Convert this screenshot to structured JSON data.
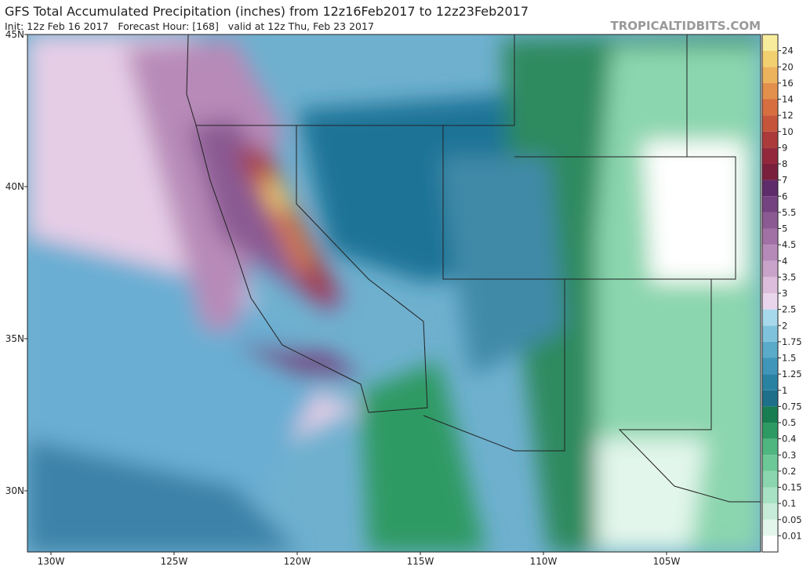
{
  "header": {
    "title": "GFS Total Accumulated Precipitation (inches) from 12z16Feb2017 to 12z23Feb2017",
    "subtitle": "Init: 12z Feb 16 2017   Forecast Hour: [168]   valid at 12z Thu, Feb 23 2017",
    "watermark": "TROPICALTIDBITS.COM"
  },
  "map": {
    "lat_labels": [
      "45N",
      "40N",
      "35N",
      "30N"
    ],
    "lon_labels": [
      "130W",
      "125W",
      "120W",
      "115W",
      "110W",
      "105W"
    ]
  },
  "colorbar": {
    "labels": [
      "0.01",
      "0.05",
      "0.1",
      "0.15",
      "0.2",
      "0.3",
      "0.4",
      "0.5",
      "0.75",
      "1",
      "1.25",
      "1.5",
      "1.75",
      "2",
      "2.5",
      "3",
      "3.5",
      "4",
      "4.5",
      "5",
      "5.5",
      "6",
      "7",
      "8",
      "9",
      "10",
      "12",
      "14",
      "16",
      "20",
      "24"
    ],
    "colors": [
      "#ffffff",
      "#e3f6ec",
      "#c6ecd8",
      "#a8e2c4",
      "#8bd6ae",
      "#6dc898",
      "#4fb680",
      "#2e9a63",
      "#187e52",
      "#1d6f8a",
      "#2a82a3",
      "#3f96b8",
      "#5aaac9",
      "#7fc2dc",
      "#a7d9ec",
      "#ead6ec",
      "#dcbedc",
      "#c9a3c9",
      "#b68ab8",
      "#a171a6",
      "#8b5a93",
      "#744280",
      "#5e2c6a",
      "#7a1f3c",
      "#93283c",
      "#ac3a3a",
      "#c5543a",
      "#d66e40",
      "#e3904c",
      "#edb25c",
      "#f2d070",
      "#f7ec9c"
    ]
  }
}
